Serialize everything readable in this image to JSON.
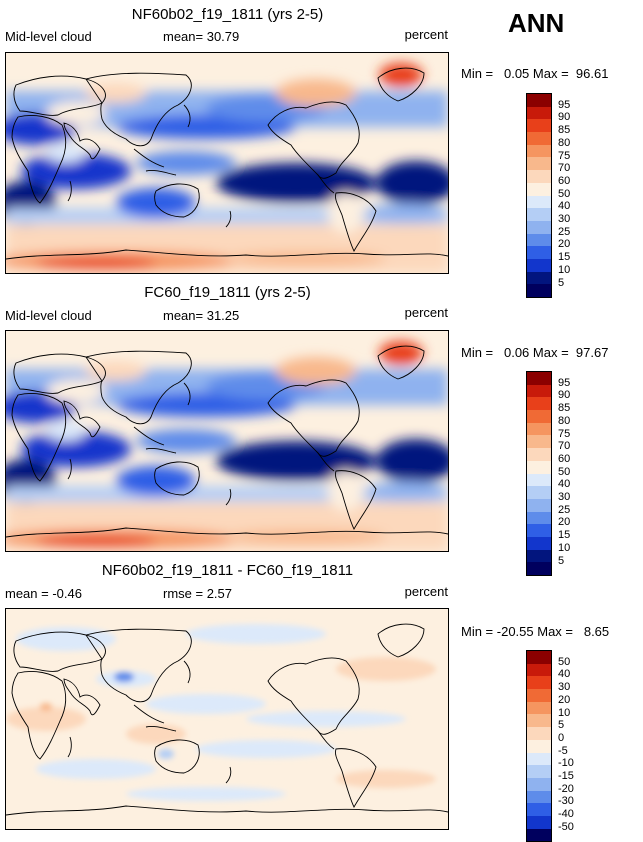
{
  "season": "ANN",
  "panels": [
    {
      "title": "NF60b02_f19_1811 (yrs 2-5)",
      "left_label": "Mid-level cloud",
      "mid_label": "mean=  30.79",
      "right_label": "percent",
      "minmax": "Min =   0.05 Max =  96.61",
      "colorbar": {
        "labels": [
          "95",
          "90",
          "85",
          "80",
          "75",
          "70",
          "60",
          "50",
          "40",
          "30",
          "25",
          "20",
          "15",
          "10",
          "5"
        ],
        "colors": [
          "#8b0000",
          "#c81a0a",
          "#e8401a",
          "#f06a35",
          "#f59560",
          "#f8b88c",
          "#fcd8bc",
          "#fdf0e0",
          "#dce9fa",
          "#b4cef5",
          "#8fb2ef",
          "#5e8cea",
          "#2f5fe6",
          "#1236cc",
          "#02157e",
          "#00005e"
        ]
      }
    },
    {
      "title": "FC60_f19_1811 (yrs 2-5)",
      "left_label": "Mid-level cloud",
      "mid_label": "mean=  31.25",
      "right_label": "percent",
      "minmax": "Min =   0.06 Max =  97.67",
      "colorbar": {
        "labels": [
          "95",
          "90",
          "85",
          "80",
          "75",
          "70",
          "60",
          "50",
          "40",
          "30",
          "25",
          "20",
          "15",
          "10",
          "5"
        ],
        "colors": [
          "#8b0000",
          "#c81a0a",
          "#e8401a",
          "#f06a35",
          "#f59560",
          "#f8b88c",
          "#fcd8bc",
          "#fdf0e0",
          "#dce9fa",
          "#b4cef5",
          "#8fb2ef",
          "#5e8cea",
          "#2f5fe6",
          "#1236cc",
          "#02157e",
          "#00005e"
        ]
      }
    },
    {
      "title": "NF60b02_f19_1811 - FC60_f19_1811",
      "left_label": "mean =  -0.46",
      "mid_label": "rmse =   2.57",
      "right_label": "percent",
      "minmax": "Min = -20.55 Max =   8.65",
      "colorbar": {
        "labels": [
          "50",
          "40",
          "30",
          "20",
          "10",
          "5",
          "0",
          "-5",
          "-10",
          "-15",
          "-20",
          "-30",
          "-40",
          "-50"
        ],
        "colors": [
          "#8b0000",
          "#c81a0a",
          "#e8401a",
          "#f06a35",
          "#f59560",
          "#f8b88c",
          "#fcd8bc",
          "#fdf0e0",
          "#dce9fa",
          "#b4cef5",
          "#8fb2ef",
          "#5e8cea",
          "#2f5fe6",
          "#1236cc",
          "#00005e"
        ]
      }
    }
  ]
}
